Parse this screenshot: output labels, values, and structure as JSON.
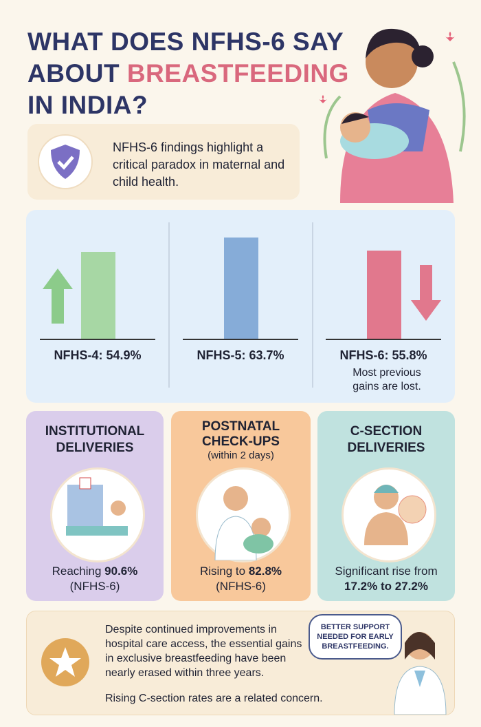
{
  "header": {
    "title_line1": "WHAT DOES NFHS-6 SAY",
    "title_line2_a": "ABOUT",
    "title_line2_b": "BREASTFEEDING",
    "title_line3": "IN INDIA?"
  },
  "intro": {
    "text": "NFHS-6 findings highlight a critical paradox in maternal and child health."
  },
  "trend": {
    "items": [
      {
        "label": "NFHS-4: 54.9%",
        "value": 54.9,
        "direction": "up",
        "color": "#a7d7a4"
      },
      {
        "label": "NFHS-5: 63.7%",
        "value": 63.7,
        "direction": "none",
        "color": "#86acd8"
      },
      {
        "label": "NFHS-6: 55.8%",
        "value": 55.8,
        "direction": "down",
        "color": "#e1788d",
        "note": "Most previous gains are lost."
      }
    ]
  },
  "cards": [
    {
      "title": "INSTITUTIONAL DELIVERIES",
      "body": "Reaching",
      "bold": "90.6%",
      "tail": "(NFHS-6)"
    },
    {
      "title": "POSTNATAL CHECK-UPS",
      "subtitle": "(within 2 days)",
      "body": "Rising to",
      "bold": "82.8%",
      "tail": "(NFHS-6)"
    },
    {
      "title": "C-SECTION DELIVERIES",
      "body": "Significant rise from",
      "tail_bold": "17.2% to 27.2%"
    }
  ],
  "footer": {
    "text": "Despite continued improvements in hospital care access, the essential gains in exclusive breastfeeding have been nearly erased within three years.",
    "note": "Rising C-section rates are a related concern.",
    "bubble": "BETTER SUPPORT NEEDED FOR EARLY BREASTFEEDING."
  }
}
